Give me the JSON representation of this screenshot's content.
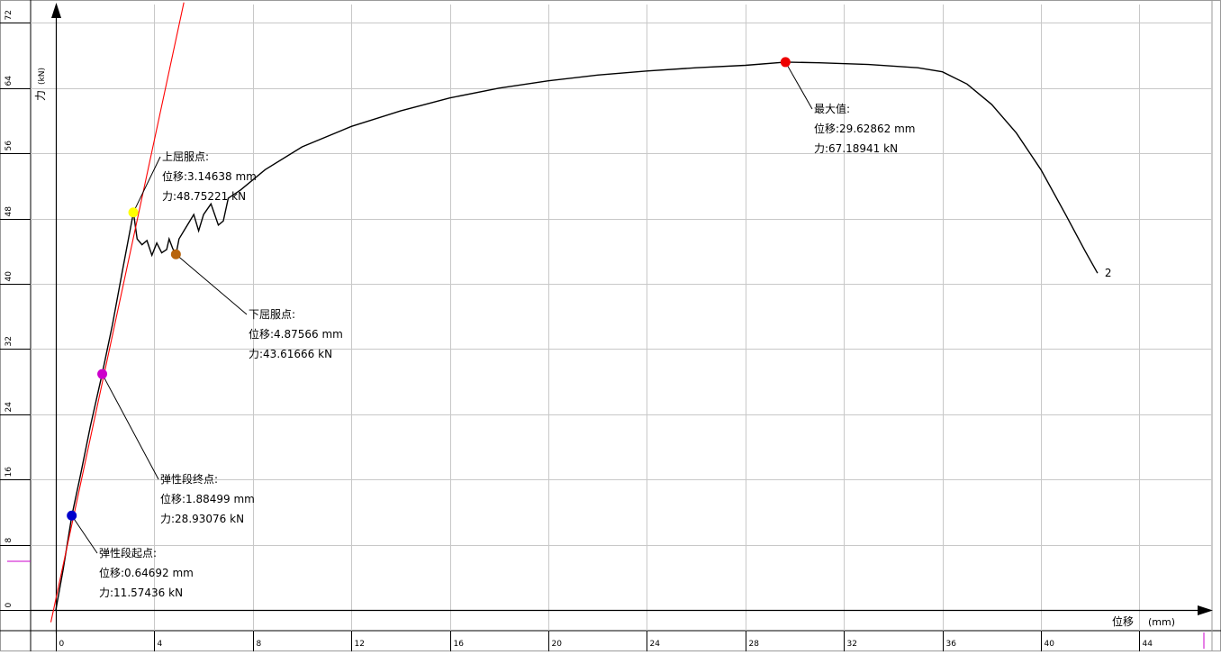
{
  "chart_data": {
    "type": "line",
    "xlabel": "位移",
    "xunit": "(mm)",
    "ylabel": "力",
    "yunit": "(kN)",
    "xlim": [
      -0.15,
      46
    ],
    "ylim": [
      -0.3,
      74.5
    ],
    "grid": true,
    "x_ticks": [
      "0",
      "4",
      "8",
      "12",
      "16",
      "20",
      "24",
      "28",
      "32",
      "36",
      "40",
      "44"
    ],
    "y_ticks": [
      "0",
      "8",
      "16",
      "24",
      "32",
      "40",
      "48",
      "56",
      "64",
      "72"
    ],
    "series": [
      {
        "color": "#000000",
        "end_label": "2",
        "x": [
          0,
          0.3,
          0.65,
          1.0,
          1.4,
          1.88,
          2.3,
          2.7,
          3.15,
          3.3,
          3.5,
          3.7,
          3.9,
          4.1,
          4.3,
          4.5,
          4.6,
          4.75,
          4.88,
          5.0,
          5.3,
          5.6,
          5.8,
          6.0,
          6.3,
          6.6,
          6.8,
          7.0,
          7.5,
          8.5,
          10,
          12,
          14,
          16,
          18,
          20,
          22,
          24,
          26,
          28,
          29.63,
          31,
          33,
          35,
          36,
          37,
          38,
          39,
          40,
          41,
          41.8,
          42.3
        ],
        "y": [
          0,
          5,
          11.57,
          16.5,
          22.5,
          28.93,
          35,
          41.5,
          48.75,
          45.5,
          44.8,
          45.3,
          43.5,
          45,
          43.8,
          44.2,
          45.5,
          44.3,
          43.62,
          45.5,
          47,
          48.5,
          46.5,
          48.5,
          49.8,
          47.2,
          47.7,
          50.5,
          51.5,
          54,
          56.8,
          59.3,
          61.2,
          62.8,
          64,
          64.9,
          65.6,
          66.1,
          66.5,
          66.8,
          67.19,
          67.1,
          66.9,
          66.5,
          66,
          64.5,
          62,
          58.5,
          54,
          48.5,
          44,
          41.3
        ]
      },
      {
        "color": "#ff0000",
        "x": [
          -0.2,
          5.2
        ],
        "y": [
          -1.5,
          74.5
        ]
      }
    ],
    "annotations": [
      {
        "color": "#0000cc",
        "x": 0.64692,
        "y": 11.57436,
        "title": "弹性段起点:",
        "disp": "位移:0.64692 mm",
        "force": "力:11.57436 kN"
      },
      {
        "color": "#cc00cc",
        "x": 1.88499,
        "y": 28.93076,
        "title": "弹性段终点:",
        "disp": "位移:1.88499 mm",
        "force": "力:28.93076 kN"
      },
      {
        "color": "#ffff00",
        "x": 3.14638,
        "y": 48.75221,
        "title": "上屈服点:",
        "disp": "位移:3.14638 mm",
        "force": "力:48.75221 kN"
      },
      {
        "color": "#b8640c",
        "x": 4.87566,
        "y": 43.61666,
        "title": "下屈服点:",
        "disp": "位移:4.87566 mm",
        "force": "力:43.61666 kN"
      },
      {
        "color": "#ee0000",
        "x": 29.62862,
        "y": 67.18941,
        "title": "最大值:",
        "disp": "位移:29.62862 mm",
        "force": "力:67.18941 kN"
      }
    ]
  }
}
